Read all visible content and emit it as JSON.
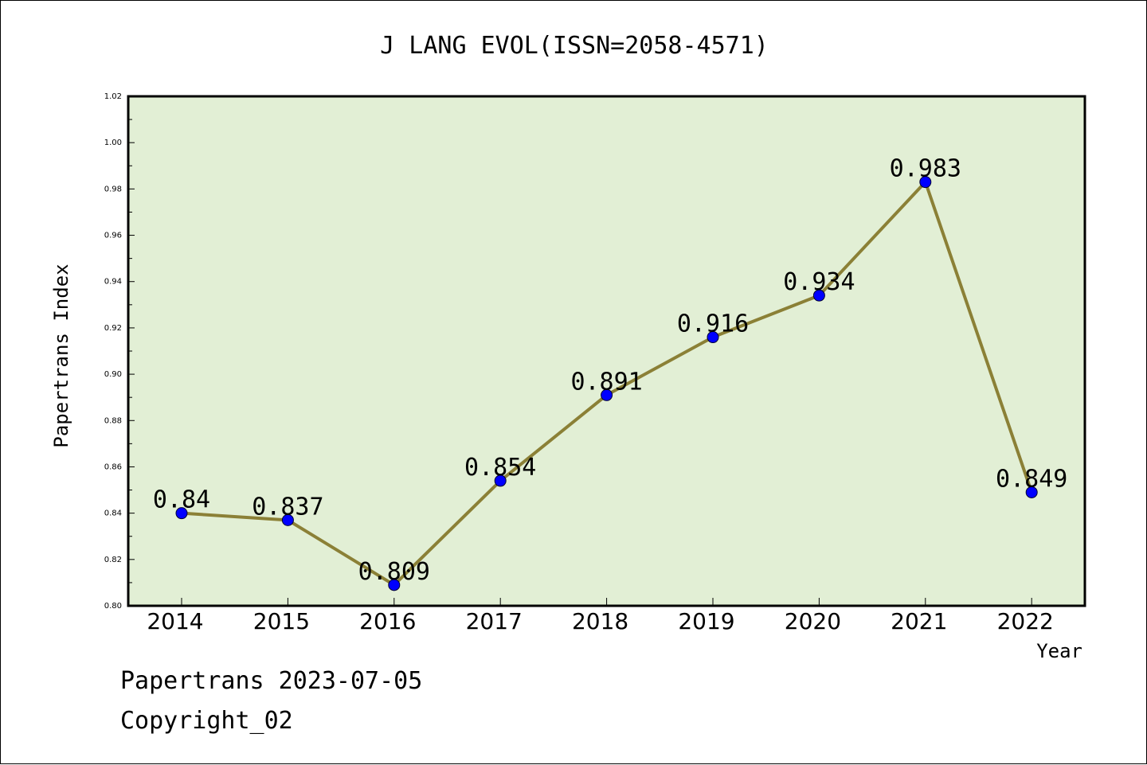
{
  "chart_data": {
    "type": "line",
    "title": "J LANG EVOL(ISSN=2058-4571)",
    "xlabel": "Year",
    "ylabel": "Papertrans Index",
    "categories": [
      "2014",
      "2015",
      "2016",
      "2017",
      "2018",
      "2019",
      "2020",
      "2021",
      "2022"
    ],
    "series": [
      {
        "values": [
          0.84,
          0.837,
          0.809,
          0.854,
          0.891,
          0.916,
          0.934,
          0.983,
          0.849
        ],
        "labels": [
          "0.84",
          "0.837",
          "0.809",
          "0.854",
          "0.891",
          "0.916",
          "0.934",
          "0.983",
          "0.849"
        ]
      }
    ],
    "ylim": [
      0.8,
      1.02
    ],
    "yticks": [
      "0.80",
      "0.82",
      "0.84",
      "0.86",
      "0.88",
      "0.90",
      "0.92",
      "0.94",
      "0.96",
      "0.98",
      "1.00",
      "1.02"
    ],
    "grid": false,
    "colors": {
      "plot_background": "#e2efd5",
      "line": "#8b8036",
      "marker": "#0000ff",
      "axes": "#000000"
    }
  },
  "footer": {
    "line1": "Papertrans 2023-07-05",
    "line2": "Copyright_02"
  }
}
